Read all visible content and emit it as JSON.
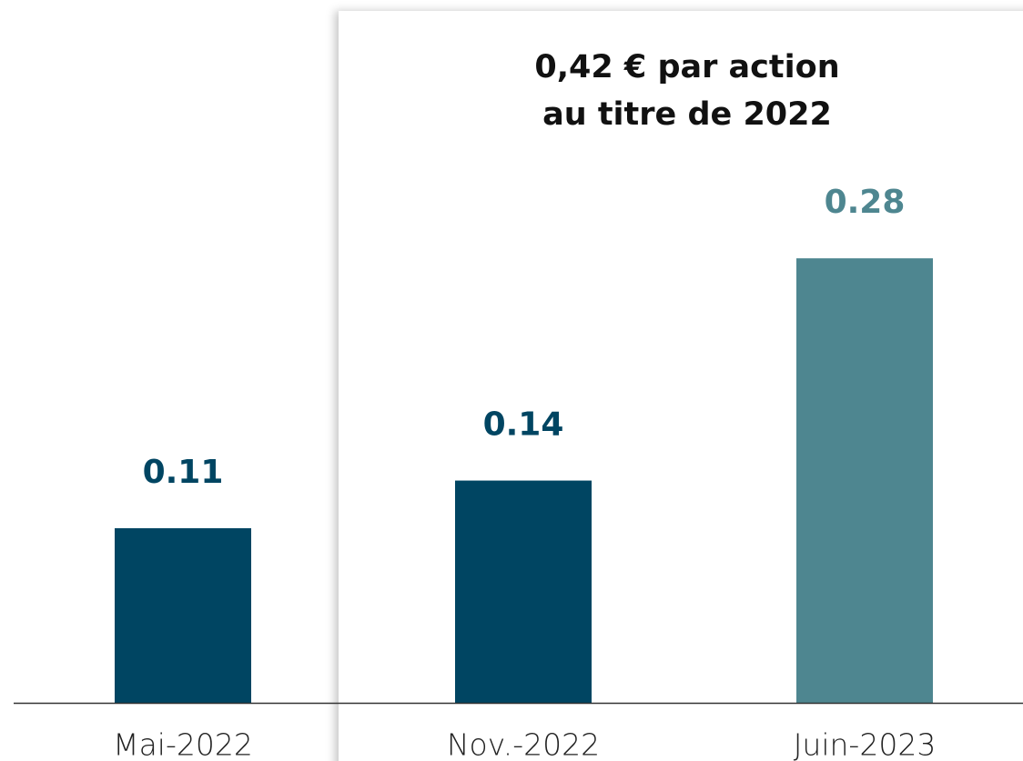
{
  "chart_data": {
    "type": "bar",
    "annotation_lines": [
      "0,42 € par action",
      "au titre de 2022"
    ],
    "categories": [
      "Mai-2022",
      "Nov.-2022",
      "Juin-2023"
    ],
    "values": [
      0.11,
      0.14,
      0.28
    ],
    "colors": [
      "#004562",
      "#004562",
      "#4e8690"
    ]
  }
}
